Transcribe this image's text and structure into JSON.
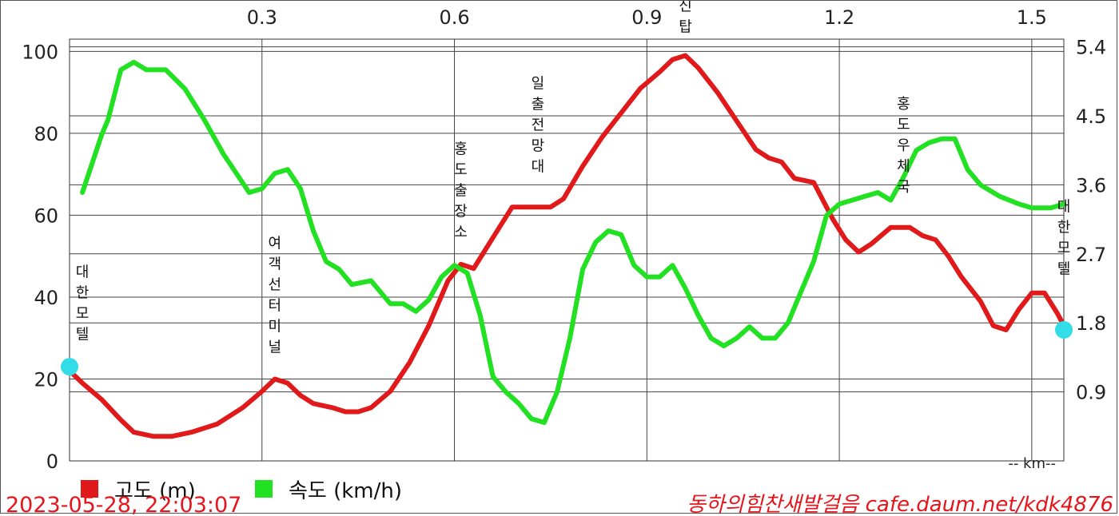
{
  "chart_data": {
    "type": "line",
    "x_unit_label": "-- km--",
    "x_ticks": [
      0.3,
      0.6,
      0.9,
      1.2,
      1.5
    ],
    "x_tick_labels": [
      "0.3",
      "0.6",
      "0.9",
      "1.2",
      "1.5"
    ],
    "xlim": [
      0,
      1.55
    ],
    "y_left_ticks": [
      0,
      20,
      40,
      60,
      80,
      100
    ],
    "y_left_tick_labels": [
      "0",
      "20",
      "40",
      "60",
      "80",
      "100"
    ],
    "y_left_lim": [
      0,
      103
    ],
    "y_right_ticks": [
      0.9,
      1.8,
      2.7,
      3.6,
      4.5,
      5.4
    ],
    "y_right_tick_labels": [
      "0.9",
      "1.8",
      "2.7",
      "3.6",
      "4.5",
      "5.4"
    ],
    "y_right_lim": [
      0,
      5.5
    ],
    "grid": true,
    "legend_position": "bottom-left",
    "series": [
      {
        "name": "고도 (m)",
        "axis": "left",
        "color": "#e01a1a",
        "points": [
          [
            0.0,
            22
          ],
          [
            0.02,
            19
          ],
          [
            0.05,
            15
          ],
          [
            0.08,
            10
          ],
          [
            0.1,
            7
          ],
          [
            0.13,
            6
          ],
          [
            0.16,
            6
          ],
          [
            0.19,
            7
          ],
          [
            0.23,
            9
          ],
          [
            0.27,
            13
          ],
          [
            0.3,
            17
          ],
          [
            0.32,
            20
          ],
          [
            0.34,
            19
          ],
          [
            0.36,
            16
          ],
          [
            0.38,
            14
          ],
          [
            0.41,
            13
          ],
          [
            0.43,
            12
          ],
          [
            0.45,
            12
          ],
          [
            0.47,
            13
          ],
          [
            0.5,
            17
          ],
          [
            0.53,
            24
          ],
          [
            0.56,
            33
          ],
          [
            0.59,
            44
          ],
          [
            0.61,
            48
          ],
          [
            0.63,
            47
          ],
          [
            0.65,
            52
          ],
          [
            0.67,
            57
          ],
          [
            0.69,
            62
          ],
          [
            0.71,
            62
          ],
          [
            0.73,
            62
          ],
          [
            0.75,
            62
          ],
          [
            0.77,
            64
          ],
          [
            0.8,
            72
          ],
          [
            0.83,
            79
          ],
          [
            0.86,
            85
          ],
          [
            0.89,
            91
          ],
          [
            0.92,
            95
          ],
          [
            0.94,
            98
          ],
          [
            0.96,
            99
          ],
          [
            0.98,
            96
          ],
          [
            1.01,
            90
          ],
          [
            1.04,
            83
          ],
          [
            1.07,
            76
          ],
          [
            1.09,
            74
          ],
          [
            1.11,
            73
          ],
          [
            1.13,
            69
          ],
          [
            1.16,
            68
          ],
          [
            1.19,
            59
          ],
          [
            1.21,
            54
          ],
          [
            1.23,
            51
          ],
          [
            1.25,
            53
          ],
          [
            1.28,
            57
          ],
          [
            1.31,
            57
          ],
          [
            1.33,
            55
          ],
          [
            1.35,
            54
          ],
          [
            1.37,
            50
          ],
          [
            1.39,
            45
          ],
          [
            1.42,
            39
          ],
          [
            1.44,
            33
          ],
          [
            1.46,
            32
          ],
          [
            1.48,
            37
          ],
          [
            1.5,
            41
          ],
          [
            1.52,
            41
          ],
          [
            1.54,
            36
          ],
          [
            1.55,
            33
          ]
        ]
      },
      {
        "name": "속도 (km/h)",
        "axis": "right",
        "color": "#22e022",
        "points": [
          [
            0.02,
            3.5
          ],
          [
            0.04,
            4.0
          ],
          [
            0.05,
            4.25
          ],
          [
            0.06,
            4.45
          ],
          [
            0.08,
            5.1
          ],
          [
            0.1,
            5.2
          ],
          [
            0.12,
            5.1
          ],
          [
            0.15,
            5.1
          ],
          [
            0.18,
            4.85
          ],
          [
            0.21,
            4.45
          ],
          [
            0.24,
            4.0
          ],
          [
            0.26,
            3.75
          ],
          [
            0.28,
            3.5
          ],
          [
            0.3,
            3.55
          ],
          [
            0.32,
            3.75
          ],
          [
            0.34,
            3.8
          ],
          [
            0.36,
            3.55
          ],
          [
            0.38,
            3.0
          ],
          [
            0.4,
            2.6
          ],
          [
            0.42,
            2.5
          ],
          [
            0.44,
            2.3
          ],
          [
            0.47,
            2.35
          ],
          [
            0.5,
            2.05
          ],
          [
            0.52,
            2.05
          ],
          [
            0.54,
            1.95
          ],
          [
            0.56,
            2.1
          ],
          [
            0.58,
            2.4
          ],
          [
            0.6,
            2.55
          ],
          [
            0.62,
            2.45
          ],
          [
            0.64,
            1.9
          ],
          [
            0.66,
            1.1
          ],
          [
            0.68,
            0.9
          ],
          [
            0.7,
            0.75
          ],
          [
            0.72,
            0.55
          ],
          [
            0.74,
            0.5
          ],
          [
            0.76,
            0.9
          ],
          [
            0.78,
            1.6
          ],
          [
            0.8,
            2.5
          ],
          [
            0.82,
            2.85
          ],
          [
            0.84,
            3.0
          ],
          [
            0.86,
            2.95
          ],
          [
            0.88,
            2.55
          ],
          [
            0.9,
            2.4
          ],
          [
            0.92,
            2.4
          ],
          [
            0.94,
            2.55
          ],
          [
            0.96,
            2.25
          ],
          [
            0.98,
            1.9
          ],
          [
            1.0,
            1.6
          ],
          [
            1.02,
            1.5
          ],
          [
            1.04,
            1.6
          ],
          [
            1.06,
            1.75
          ],
          [
            1.08,
            1.6
          ],
          [
            1.1,
            1.6
          ],
          [
            1.12,
            1.8
          ],
          [
            1.14,
            2.2
          ],
          [
            1.16,
            2.6
          ],
          [
            1.18,
            3.2
          ],
          [
            1.2,
            3.35
          ],
          [
            1.22,
            3.4
          ],
          [
            1.24,
            3.45
          ],
          [
            1.26,
            3.5
          ],
          [
            1.28,
            3.4
          ],
          [
            1.3,
            3.7
          ],
          [
            1.32,
            4.05
          ],
          [
            1.34,
            4.15
          ],
          [
            1.36,
            4.2
          ],
          [
            1.38,
            4.2
          ],
          [
            1.4,
            3.8
          ],
          [
            1.42,
            3.6
          ],
          [
            1.45,
            3.45
          ],
          [
            1.48,
            3.35
          ],
          [
            1.5,
            3.3
          ],
          [
            1.53,
            3.3
          ],
          [
            1.55,
            3.35
          ]
        ]
      }
    ],
    "markers": [
      {
        "x": 0.0,
        "y": 23,
        "color": "#33dde8"
      },
      {
        "x": 1.55,
        "y": 32,
        "color": "#33dde8"
      }
    ],
    "annotations": [
      {
        "text": "대한모텔",
        "x": 0.02,
        "y": 45
      },
      {
        "text": "여객선터미널",
        "x": 0.32,
        "y": 52
      },
      {
        "text": "홍도출장소",
        "x": 0.61,
        "y": 75
      },
      {
        "text": "일출전망대",
        "x": 0.73,
        "y": 91
      },
      {
        "text": "송신탑",
        "x": 0.96,
        "y": 115
      },
      {
        "text": "홍도우체국",
        "x": 1.3,
        "y": 86
      },
      {
        "text": "대한모텔",
        "x": 1.55,
        "y": 61
      }
    ]
  },
  "timestamp": "2023-05-28, 22:03:07",
  "credit": "동하의힘찬새발걸음 cafe.daum.net/kdk4876"
}
